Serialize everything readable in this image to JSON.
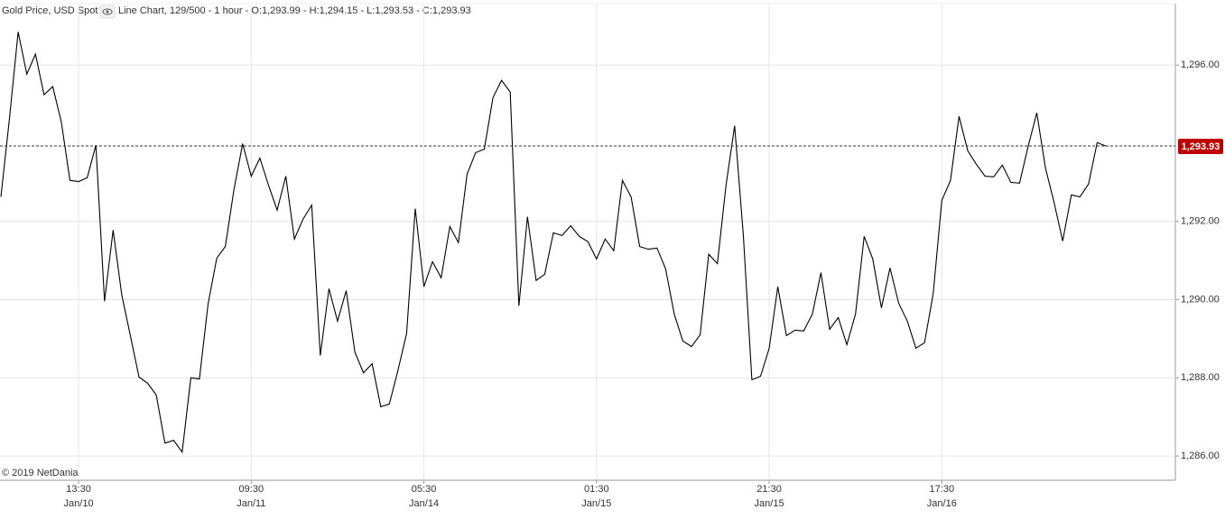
{
  "chart_data": {
    "type": "line",
    "title": "Gold Price, USD Spot",
    "subtitle": "Line Chart, 129/500 - 1 hour - O:1,293.99 - H:1,294.15 - L:1,293.53 - C:1,293.93",
    "copyright": "© 2019 NetDania",
    "color": "#000000",
    "values": [
      1292.63,
      1294.66,
      1296.85,
      1295.77,
      1296.28,
      1295.24,
      1295.45,
      1294.55,
      1293.05,
      1293.02,
      1293.12,
      1293.95,
      1289.96,
      1291.78,
      1290.12,
      1289.08,
      1288.02,
      1287.86,
      1287.56,
      1286.33,
      1286.4,
      1286.1,
      1288.0,
      1287.97,
      1289.89,
      1291.06,
      1291.36,
      1292.82,
      1293.99,
      1293.16,
      1293.62,
      1292.93,
      1292.29,
      1293.16,
      1291.55,
      1292.06,
      1292.42,
      1288.57,
      1290.28,
      1289.45,
      1290.23,
      1288.66,
      1288.13,
      1288.36,
      1287.26,
      1287.33,
      1288.2,
      1289.13,
      1292.33,
      1290.33,
      1290.97,
      1290.56,
      1291.87,
      1291.46,
      1293.21,
      1293.76,
      1293.85,
      1295.17,
      1295.61,
      1295.31,
      1289.84,
      1292.12,
      1290.49,
      1290.65,
      1291.71,
      1291.64,
      1291.89,
      1291.62,
      1291.48,
      1291.04,
      1291.55,
      1291.25,
      1293.05,
      1292.63,
      1291.36,
      1291.29,
      1291.32,
      1290.79,
      1289.63,
      1288.94,
      1288.8,
      1289.1,
      1291.16,
      1290.92,
      1292.93,
      1294.45,
      1291.66,
      1287.95,
      1288.04,
      1288.76,
      1290.33,
      1289.08,
      1289.22,
      1289.2,
      1289.63,
      1290.69,
      1289.24,
      1289.54,
      1288.85,
      1289.63,
      1291.62,
      1291.04,
      1289.79,
      1290.81,
      1289.91,
      1289.45,
      1288.76,
      1288.9,
      1290.16,
      1292.54,
      1293.05,
      1294.69,
      1293.81,
      1293.46,
      1293.16,
      1293.14,
      1293.44,
      1293.0,
      1292.98,
      1293.92,
      1294.78,
      1293.37,
      1292.49,
      1291.5,
      1292.68,
      1292.63,
      1292.96,
      1294.02,
      1293.93
    ],
    "xlim": [
      0,
      128
    ],
    "xticks": [
      {
        "value": 9,
        "label": "13:30",
        "date": "Jan/10"
      },
      {
        "value": 29,
        "label": "09:30",
        "date": "Jan/11"
      },
      {
        "value": 49,
        "label": "05:30",
        "date": "Jan/14"
      },
      {
        "value": 69,
        "label": "01:30",
        "date": "Jan/15"
      },
      {
        "value": 89,
        "label": "21:30",
        "date": "Jan/15"
      },
      {
        "value": 109,
        "label": "17:30",
        "date": "Jan/16"
      }
    ],
    "ylim": [
      1285.38,
      1297.55
    ],
    "yticks": [
      {
        "value": 1286,
        "label": "1,286.00"
      },
      {
        "value": 1288,
        "label": "1,288.00"
      },
      {
        "value": 1290,
        "label": "1,290.00"
      },
      {
        "value": 1292,
        "label": "1,292.00"
      },
      {
        "value": 1296,
        "label": "1,296.00"
      }
    ],
    "last_price": {
      "value": 1293.93,
      "label": "1,293.93",
      "color": "#c00000"
    },
    "grid": true
  }
}
